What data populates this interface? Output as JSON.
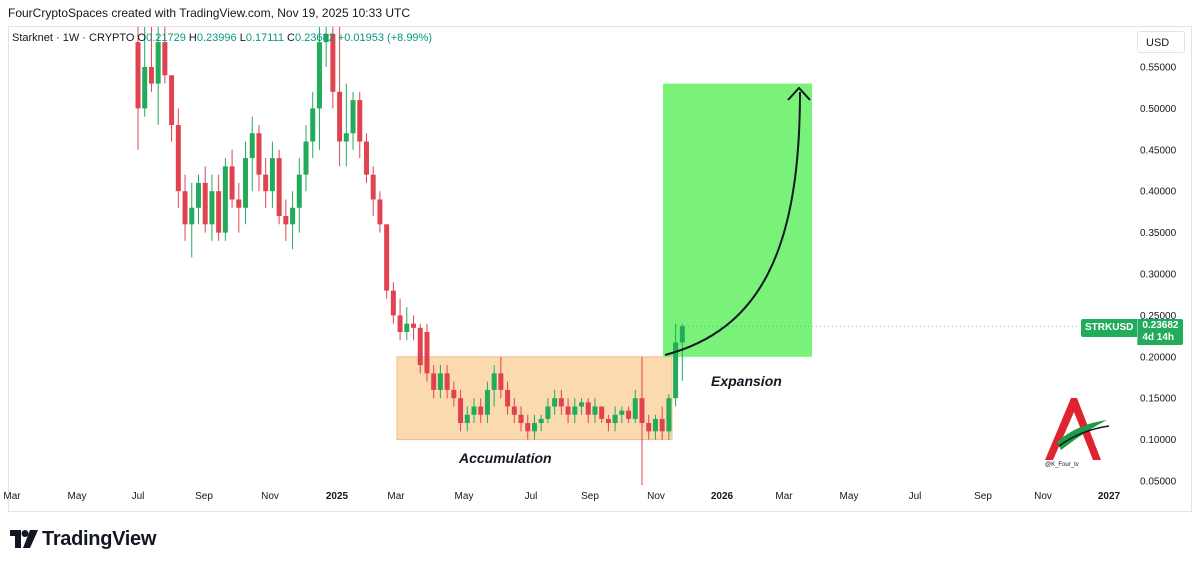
{
  "header": {
    "attribution": "FourCryptoSpaces created with TradingView.com, Nov 19, 2025 10:33 UTC"
  },
  "legend": {
    "symbol": "Starknet · 1W · CRYPTO",
    "open_label": "O",
    "open": "0.21729",
    "high_label": "H",
    "high": "0.23996",
    "low_label": "L",
    "low": "0.17111",
    "close_label": "C",
    "close": "0.23682",
    "change": "+0.01953 (+8.99%)"
  },
  "currency_button": "USD",
  "price_tag": {
    "symbol": "STRKUSD",
    "price": "0.23682",
    "countdown": "4d 14h"
  },
  "annotations": {
    "accumulation": "Accumulation",
    "expansion": "Expansion"
  },
  "watermark_handle": "@K_Four_tv",
  "brand": "TradingView",
  "colors": {
    "up": "#22ab5b",
    "down": "#e0434f",
    "accumulation_box": "#fbd7a8",
    "target_box": "#7af27a"
  },
  "chart_data": {
    "type": "candlestick",
    "title": "Starknet · 1W · CRYPTO",
    "interval": "1W",
    "y_axis": {
      "position": "right",
      "ticks": [
        "0.55000",
        "0.50000",
        "0.45000",
        "0.40000",
        "0.35000",
        "0.30000",
        "0.25000",
        "0.20000",
        "0.15000",
        "0.10000",
        "0.05000"
      ],
      "range": [
        0.05,
        0.56
      ]
    },
    "x_axis": {
      "ticks": [
        "Mar",
        "May",
        "Jul",
        "Sep",
        "Nov",
        "2025",
        "Mar",
        "May",
        "Jul",
        "Sep",
        "Nov",
        "2026",
        "Mar",
        "May",
        "Jul",
        "Sep",
        "Nov",
        "2027"
      ],
      "bold_ticks": [
        "2025",
        "2026",
        "2027"
      ]
    },
    "candles": [
      {
        "o": 0.58,
        "h": 0.6,
        "l": 0.45,
        "c": 0.5
      },
      {
        "o": 0.5,
        "h": 0.6,
        "l": 0.49,
        "c": 0.55
      },
      {
        "o": 0.55,
        "h": 0.6,
        "l": 0.52,
        "c": 0.53
      },
      {
        "o": 0.53,
        "h": 0.6,
        "l": 0.48,
        "c": 0.58
      },
      {
        "o": 0.58,
        "h": 0.6,
        "l": 0.53,
        "c": 0.54
      },
      {
        "o": 0.54,
        "h": 0.54,
        "l": 0.46,
        "c": 0.48
      },
      {
        "o": 0.48,
        "h": 0.5,
        "l": 0.38,
        "c": 0.4
      },
      {
        "o": 0.4,
        "h": 0.42,
        "l": 0.34,
        "c": 0.36
      },
      {
        "o": 0.36,
        "h": 0.41,
        "l": 0.32,
        "c": 0.38
      },
      {
        "o": 0.38,
        "h": 0.42,
        "l": 0.36,
        "c": 0.41
      },
      {
        "o": 0.41,
        "h": 0.43,
        "l": 0.35,
        "c": 0.36
      },
      {
        "o": 0.36,
        "h": 0.42,
        "l": 0.34,
        "c": 0.4
      },
      {
        "o": 0.4,
        "h": 0.42,
        "l": 0.34,
        "c": 0.35
      },
      {
        "o": 0.35,
        "h": 0.44,
        "l": 0.34,
        "c": 0.43
      },
      {
        "o": 0.43,
        "h": 0.45,
        "l": 0.38,
        "c": 0.39
      },
      {
        "o": 0.39,
        "h": 0.41,
        "l": 0.35,
        "c": 0.38
      },
      {
        "o": 0.38,
        "h": 0.46,
        "l": 0.36,
        "c": 0.44
      },
      {
        "o": 0.44,
        "h": 0.49,
        "l": 0.4,
        "c": 0.47
      },
      {
        "o": 0.47,
        "h": 0.48,
        "l": 0.4,
        "c": 0.42
      },
      {
        "o": 0.42,
        "h": 0.44,
        "l": 0.38,
        "c": 0.4
      },
      {
        "o": 0.4,
        "h": 0.46,
        "l": 0.38,
        "c": 0.44
      },
      {
        "o": 0.44,
        "h": 0.45,
        "l": 0.36,
        "c": 0.37
      },
      {
        "o": 0.37,
        "h": 0.39,
        "l": 0.34,
        "c": 0.36
      },
      {
        "o": 0.36,
        "h": 0.4,
        "l": 0.33,
        "c": 0.38
      },
      {
        "o": 0.38,
        "h": 0.44,
        "l": 0.35,
        "c": 0.42
      },
      {
        "o": 0.42,
        "h": 0.48,
        "l": 0.4,
        "c": 0.46
      },
      {
        "o": 0.46,
        "h": 0.52,
        "l": 0.44,
        "c": 0.5
      },
      {
        "o": 0.5,
        "h": 0.6,
        "l": 0.45,
        "c": 0.58
      },
      {
        "o": 0.58,
        "h": 0.6,
        "l": 0.55,
        "c": 0.59
      },
      {
        "o": 0.59,
        "h": 0.6,
        "l": 0.5,
        "c": 0.52
      },
      {
        "o": 0.52,
        "h": 0.6,
        "l": 0.43,
        "c": 0.46
      },
      {
        "o": 0.46,
        "h": 0.53,
        "l": 0.43,
        "c": 0.47
      },
      {
        "o": 0.47,
        "h": 0.52,
        "l": 0.45,
        "c": 0.51
      },
      {
        "o": 0.51,
        "h": 0.52,
        "l": 0.44,
        "c": 0.46
      },
      {
        "o": 0.46,
        "h": 0.47,
        "l": 0.41,
        "c": 0.42
      },
      {
        "o": 0.42,
        "h": 0.43,
        "l": 0.37,
        "c": 0.39
      },
      {
        "o": 0.39,
        "h": 0.4,
        "l": 0.35,
        "c": 0.36
      },
      {
        "o": 0.36,
        "h": 0.36,
        "l": 0.27,
        "c": 0.28
      },
      {
        "o": 0.28,
        "h": 0.29,
        "l": 0.24,
        "c": 0.25
      },
      {
        "o": 0.25,
        "h": 0.27,
        "l": 0.22,
        "c": 0.23
      },
      {
        "o": 0.23,
        "h": 0.26,
        "l": 0.22,
        "c": 0.24
      },
      {
        "o": 0.24,
        "h": 0.25,
        "l": 0.22,
        "c": 0.235
      },
      {
        "o": 0.235,
        "h": 0.24,
        "l": 0.18,
        "c": 0.19
      },
      {
        "o": 0.23,
        "h": 0.24,
        "l": 0.17,
        "c": 0.18
      },
      {
        "o": 0.18,
        "h": 0.19,
        "l": 0.15,
        "c": 0.16
      },
      {
        "o": 0.16,
        "h": 0.19,
        "l": 0.15,
        "c": 0.18
      },
      {
        "o": 0.18,
        "h": 0.19,
        "l": 0.15,
        "c": 0.16
      },
      {
        "o": 0.16,
        "h": 0.17,
        "l": 0.14,
        "c": 0.15
      },
      {
        "o": 0.15,
        "h": 0.16,
        "l": 0.11,
        "c": 0.12
      },
      {
        "o": 0.12,
        "h": 0.14,
        "l": 0.11,
        "c": 0.13
      },
      {
        "o": 0.13,
        "h": 0.15,
        "l": 0.12,
        "c": 0.14
      },
      {
        "o": 0.14,
        "h": 0.15,
        "l": 0.12,
        "c": 0.13
      },
      {
        "o": 0.13,
        "h": 0.17,
        "l": 0.12,
        "c": 0.16
      },
      {
        "o": 0.16,
        "h": 0.19,
        "l": 0.14,
        "c": 0.18
      },
      {
        "o": 0.18,
        "h": 0.2,
        "l": 0.15,
        "c": 0.16
      },
      {
        "o": 0.16,
        "h": 0.17,
        "l": 0.13,
        "c": 0.14
      },
      {
        "o": 0.14,
        "h": 0.15,
        "l": 0.12,
        "c": 0.13
      },
      {
        "o": 0.13,
        "h": 0.14,
        "l": 0.11,
        "c": 0.12
      },
      {
        "o": 0.12,
        "h": 0.13,
        "l": 0.1,
        "c": 0.11
      },
      {
        "o": 0.11,
        "h": 0.13,
        "l": 0.1,
        "c": 0.12
      },
      {
        "o": 0.12,
        "h": 0.13,
        "l": 0.11,
        "c": 0.125
      },
      {
        "o": 0.125,
        "h": 0.15,
        "l": 0.12,
        "c": 0.14
      },
      {
        "o": 0.14,
        "h": 0.16,
        "l": 0.13,
        "c": 0.15
      },
      {
        "o": 0.15,
        "h": 0.16,
        "l": 0.13,
        "c": 0.14
      },
      {
        "o": 0.14,
        "h": 0.15,
        "l": 0.12,
        "c": 0.13
      },
      {
        "o": 0.13,
        "h": 0.15,
        "l": 0.12,
        "c": 0.14
      },
      {
        "o": 0.14,
        "h": 0.15,
        "l": 0.13,
        "c": 0.145
      },
      {
        "o": 0.145,
        "h": 0.15,
        "l": 0.12,
        "c": 0.13
      },
      {
        "o": 0.13,
        "h": 0.15,
        "l": 0.12,
        "c": 0.14
      },
      {
        "o": 0.14,
        "h": 0.14,
        "l": 0.12,
        "c": 0.125
      },
      {
        "o": 0.125,
        "h": 0.13,
        "l": 0.11,
        "c": 0.12
      },
      {
        "o": 0.12,
        "h": 0.14,
        "l": 0.11,
        "c": 0.13
      },
      {
        "o": 0.13,
        "h": 0.14,
        "l": 0.12,
        "c": 0.135
      },
      {
        "o": 0.135,
        "h": 0.14,
        "l": 0.12,
        "c": 0.125
      },
      {
        "o": 0.125,
        "h": 0.16,
        "l": 0.12,
        "c": 0.15
      },
      {
        "o": 0.15,
        "h": 0.2,
        "l": 0.045,
        "c": 0.12
      },
      {
        "o": 0.12,
        "h": 0.13,
        "l": 0.1,
        "c": 0.11
      },
      {
        "o": 0.11,
        "h": 0.13,
        "l": 0.1,
        "c": 0.125
      },
      {
        "o": 0.125,
        "h": 0.14,
        "l": 0.1,
        "c": 0.11
      },
      {
        "o": 0.11,
        "h": 0.155,
        "l": 0.1,
        "c": 0.15
      },
      {
        "o": 0.15,
        "h": 0.24,
        "l": 0.14,
        "c": 0.2173
      },
      {
        "o": 0.2173,
        "h": 0.23996,
        "l": 0.17111,
        "c": 0.23682
      }
    ]
  }
}
